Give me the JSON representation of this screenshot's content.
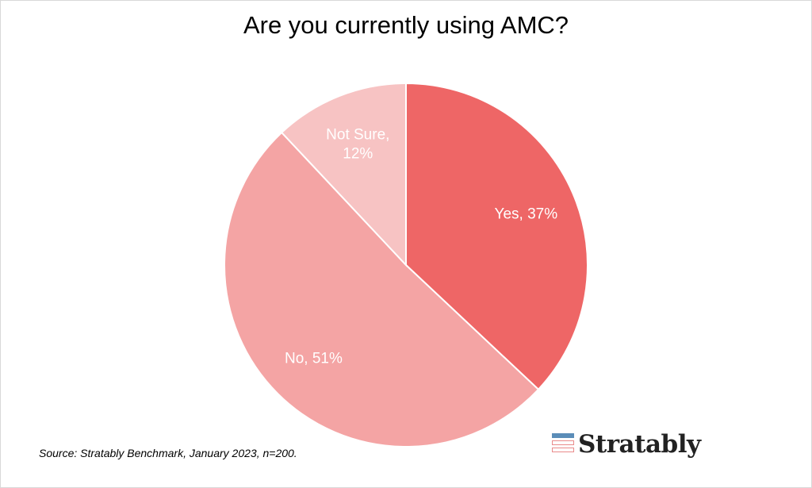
{
  "chart_data": {
    "type": "pie",
    "title": "Are you currently using AMC?",
    "slices": [
      {
        "label": "Yes",
        "value": 37,
        "display": "Yes, 37%",
        "color": "#ee6666"
      },
      {
        "label": "No",
        "value": 51,
        "display": "No, 51%",
        "color": "#f4a4a4"
      },
      {
        "label": "Not Sure",
        "value": 12,
        "display": [
          "Not Sure,",
          "12%"
        ],
        "color": "#f7c3c3"
      }
    ],
    "start": "12 o'clock",
    "direction": "clockwise",
    "legend": "none"
  },
  "footer": {
    "source": "Source: Stratably Benchmark, January 2023, n=200."
  },
  "logo": {
    "name": "Stratably",
    "colors": [
      "#5b8db8",
      "#e98b8b"
    ]
  }
}
